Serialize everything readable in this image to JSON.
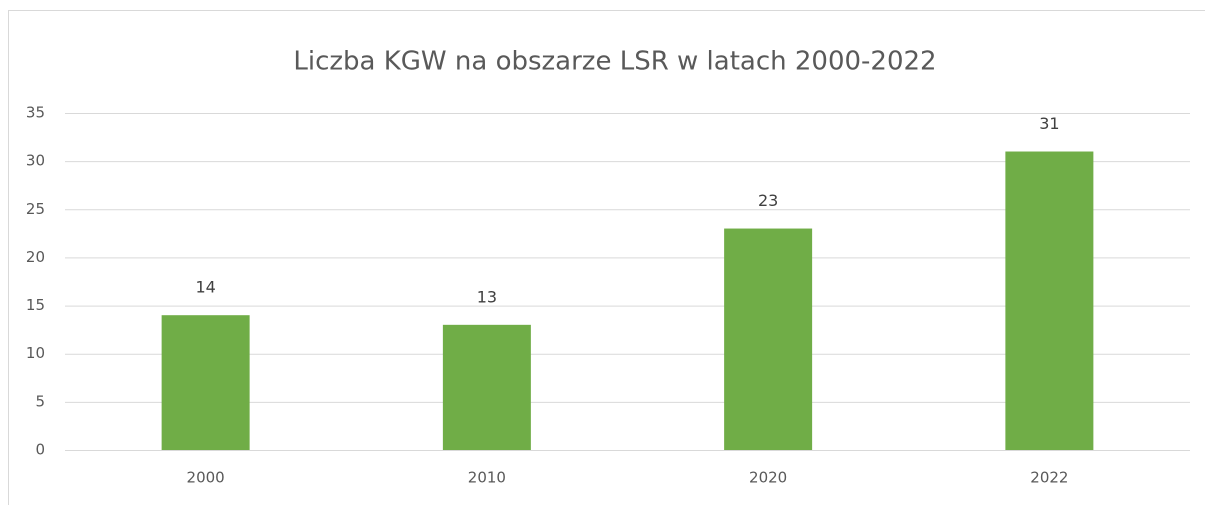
{
  "chart_data": {
    "type": "bar",
    "title": "Liczba KGW na obszarze LSR w latach 2000-2022",
    "categories": [
      "2000",
      "2010",
      "2020",
      "2022"
    ],
    "values": [
      14,
      13,
      23,
      31
    ],
    "color": "#70ad47",
    "ylim": [
      0,
      35
    ],
    "yticks": [
      0,
      5,
      10,
      15,
      20,
      25,
      30,
      35
    ],
    "grid": true
  }
}
